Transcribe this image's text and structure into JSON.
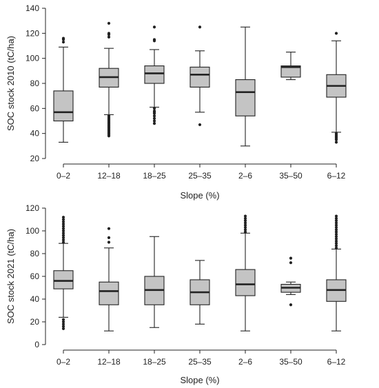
{
  "chart_data": [
    {
      "type": "box",
      "xlabel": "Slope (%)",
      "ylabel": "SOC stock 2010 (tC/ha)",
      "ylim": [
        20,
        140
      ],
      "yticks": [
        20,
        40,
        60,
        80,
        100,
        120,
        140
      ],
      "grid": false,
      "categories": [
        "0–2",
        "12–18",
        "18–25",
        "25–35",
        "2–6",
        "35–50",
        "6–12"
      ],
      "boxes": [
        {
          "min": 33,
          "q1": 50,
          "median": 57,
          "q3": 74,
          "max": 109,
          "outliers": [
            113,
            115,
            116
          ]
        },
        {
          "min": 55,
          "q1": 77,
          "median": 85,
          "q3": 92,
          "max": 108,
          "outliers": [
            38,
            39,
            40,
            41,
            42,
            43,
            44,
            45,
            46,
            47,
            48,
            49,
            50,
            51,
            52,
            53,
            54,
            117,
            119,
            120,
            128
          ]
        },
        {
          "min": 61,
          "q1": 80,
          "median": 88,
          "q3": 94,
          "max": 107,
          "outliers": [
            48,
            50,
            52,
            54,
            56,
            57,
            58,
            60,
            114,
            115,
            125
          ]
        },
        {
          "min": 57,
          "q1": 77,
          "median": 87,
          "q3": 93,
          "max": 106,
          "outliers": [
            47,
            125
          ]
        },
        {
          "min": 30,
          "q1": 54,
          "median": 73,
          "q3": 83,
          "max": 125,
          "outliers": []
        },
        {
          "min": 83,
          "q1": 85,
          "median": 93,
          "q3": 94,
          "max": 105,
          "outliers": []
        },
        {
          "min": 41,
          "q1": 69,
          "median": 78,
          "q3": 87,
          "max": 114,
          "outliers": [
            33,
            35,
            36,
            37,
            38,
            39,
            40,
            120
          ]
        }
      ]
    },
    {
      "type": "box",
      "xlabel": "Slope (%)",
      "ylabel": "SOC stock 2021 (tC/ha)",
      "ylim": [
        0,
        120
      ],
      "yticks": [
        0,
        20,
        40,
        60,
        80,
        100,
        120
      ],
      "grid": false,
      "categories": [
        "0–2",
        "12–18",
        "18–25",
        "25–35",
        "2–6",
        "35–50",
        "6–12"
      ],
      "boxes": [
        {
          "min": 24,
          "q1": 49,
          "median": 56,
          "q3": 65,
          "max": 89,
          "outliers": [
            14,
            16,
            18,
            20,
            22,
            90,
            92,
            94,
            96,
            98,
            100,
            102,
            104,
            106,
            108,
            110,
            112
          ]
        },
        {
          "min": 12,
          "q1": 35,
          "median": 47,
          "q3": 55,
          "max": 85,
          "outliers": [
            90,
            94,
            102
          ]
        },
        {
          "min": 15,
          "q1": 35,
          "median": 48,
          "q3": 60,
          "max": 95,
          "outliers": []
        },
        {
          "min": 18,
          "q1": 35,
          "median": 46,
          "q3": 57,
          "max": 74,
          "outliers": []
        },
        {
          "min": 12,
          "q1": 43,
          "median": 53,
          "q3": 66,
          "max": 98,
          "outliers": [
            99,
            101,
            103,
            105,
            107,
            109,
            111,
            113
          ]
        },
        {
          "min": 44,
          "q1": 46,
          "median": 50,
          "q3": 53,
          "max": 55,
          "outliers": [
            35,
            72,
            76
          ]
        },
        {
          "min": 12,
          "q1": 38,
          "median": 48,
          "q3": 57,
          "max": 84,
          "outliers": [
            85,
            87,
            89,
            91,
            93,
            95,
            97,
            99,
            101,
            103,
            105,
            107,
            109,
            111,
            113
          ]
        }
      ]
    }
  ]
}
